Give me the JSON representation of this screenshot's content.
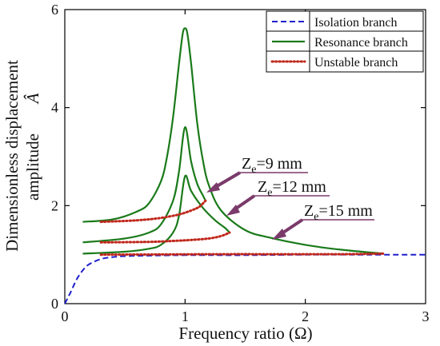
{
  "chart_data": {
    "type": "line",
    "xlabel": "Frequency ratio (Ω)",
    "ylabel_line1": "Dimensionless displacement",
    "ylabel_line2": "amplitude",
    "ylabel_symbol": "Â",
    "xlim": [
      0,
      3
    ],
    "ylim": [
      0,
      6
    ],
    "x_ticks": [
      "0",
      "1",
      "2",
      "3"
    ],
    "y_ticks": [
      "0",
      "2",
      "4",
      "6"
    ],
    "grid": false,
    "legend_position": "top-right",
    "legend": [
      {
        "label": "Isolation branch",
        "color": "#1f1fcc",
        "style": "dashed"
      },
      {
        "label": "Resonance branch",
        "color": "#1a7a1a",
        "style": "solid"
      },
      {
        "label": "Unstable branch",
        "color": "#c0281c",
        "style": "dotted"
      }
    ],
    "annotations": [
      {
        "base": "Z",
        "sub": "e",
        "rest": "=9 mm"
      },
      {
        "base": "Z",
        "sub": "e",
        "rest": "=12 mm"
      },
      {
        "base": "Z",
        "sub": "e",
        "rest": "=15 mm"
      }
    ],
    "series": [
      {
        "name": "Isolation branch",
        "color": "#1f1fcc",
        "style": "dashed",
        "x": [
          0,
          0.05,
          0.1,
          0.15,
          0.2,
          0.3,
          0.4,
          0.5,
          0.7,
          1.0,
          1.5,
          2.0,
          2.5,
          3.0
        ],
        "y": [
          0,
          0.24,
          0.5,
          0.68,
          0.8,
          0.91,
          0.95,
          0.97,
          0.98,
          0.99,
          0.99,
          1.0,
          1.0,
          1.0
        ]
      },
      {
        "name": "Resonance branch",
        "color": "#1a7a1a",
        "style": "solid",
        "x": [
          0.15,
          0.4,
          0.6,
          0.7,
          0.8,
          0.85,
          0.9,
          0.95,
          0.98,
          1.0,
          1.02,
          1.05,
          1.1,
          1.15,
          1.2,
          1.3,
          1.5,
          1.7,
          2.0,
          2.3,
          2.65
        ],
        "y": [
          1.67,
          1.72,
          1.88,
          2.05,
          2.5,
          3.0,
          3.8,
          4.9,
          5.5,
          5.62,
          5.5,
          4.9,
          3.7,
          2.9,
          2.4,
          1.9,
          1.5,
          1.35,
          1.2,
          1.1,
          1.02
        ]
      },
      {
        "name": "Resonance branch",
        "color": "#1a7a1a",
        "style": "solid",
        "x": [
          0.15,
          0.5,
          0.7,
          0.8,
          0.9,
          0.95,
          1.0,
          1.05,
          1.1,
          1.15,
          1.17
        ],
        "y": [
          1.25,
          1.33,
          1.45,
          1.62,
          2.1,
          2.7,
          3.6,
          2.9,
          2.45,
          2.2,
          2.1
        ]
      },
      {
        "name": "Resonance branch",
        "color": "#1a7a1a",
        "style": "solid",
        "x": [
          0.15,
          0.5,
          0.7,
          0.8,
          0.9,
          0.95,
          1.0,
          1.05,
          1.15,
          1.25,
          1.33,
          1.37
        ],
        "y": [
          1.02,
          1.06,
          1.12,
          1.2,
          1.45,
          1.8,
          2.6,
          2.3,
          1.95,
          1.7,
          1.55,
          1.45
        ]
      },
      {
        "name": "Unstable branch",
        "color": "#c0281c",
        "style": "dotted",
        "x": [
          0.3,
          0.6,
          0.8,
          0.95,
          1.05,
          1.12,
          1.17
        ],
        "y": [
          1.67,
          1.7,
          1.75,
          1.82,
          1.9,
          1.98,
          2.1
        ]
      },
      {
        "name": "Unstable branch",
        "color": "#c0281c",
        "style": "dotted",
        "x": [
          0.3,
          0.7,
          0.9,
          1.05,
          1.2,
          1.3,
          1.37
        ],
        "y": [
          1.25,
          1.26,
          1.28,
          1.3,
          1.33,
          1.38,
          1.45
        ]
      },
      {
        "name": "Unstable branch",
        "color": "#c0281c",
        "style": "dotted",
        "x": [
          0.3,
          0.8,
          1.3,
          1.8,
          2.3,
          2.65
        ],
        "y": [
          1.0,
          1.005,
          1.01,
          1.01,
          1.01,
          1.02
        ]
      }
    ]
  }
}
